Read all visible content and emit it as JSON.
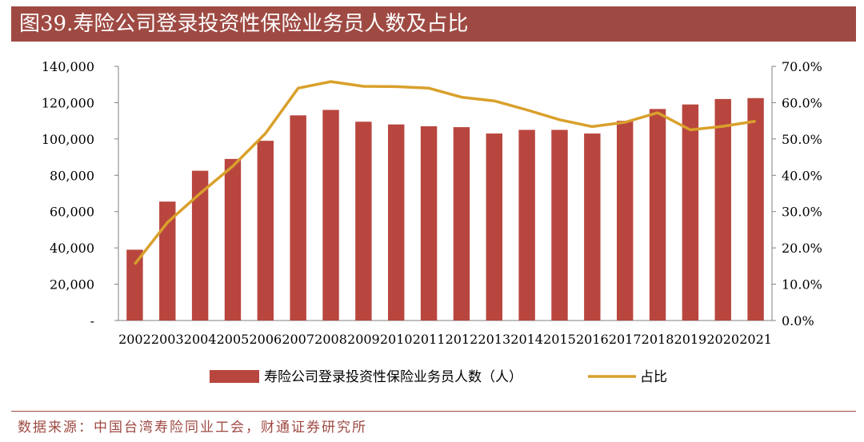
{
  "title": "图39.寿险公司登录投资性保险业务员人数及占比",
  "source": "数据来源：中国台湾寿险同业工会，财通证券研究所",
  "colors": {
    "bar": "#b8463f",
    "line": "#d9a02b",
    "title_bg": "#9e4a43"
  },
  "chart_data": {
    "type": "bar+line",
    "categories": [
      "2002",
      "2003",
      "2004",
      "2005",
      "2006",
      "2007",
      "2008",
      "2009",
      "2010",
      "2011",
      "2012",
      "2013",
      "2014",
      "2015",
      "2016",
      "2017",
      "2018",
      "2019",
      "2020",
      "2021"
    ],
    "series": [
      {
        "name": "寿险公司登录投资性保险业务员人数（人）",
        "type": "bar",
        "axis": "left",
        "values": [
          39000,
          65500,
          82500,
          89000,
          99000,
          113000,
          116000,
          109500,
          108000,
          107000,
          106500,
          103000,
          105000,
          105000,
          103000,
          110000,
          116500,
          119000,
          122000,
          122500
        ]
      },
      {
        "name": "占比",
        "type": "line",
        "axis": "right",
        "values": [
          15.5,
          27.0,
          35.0,
          42.5,
          51.5,
          64.0,
          65.8,
          64.5,
          64.4,
          64.0,
          61.5,
          60.5,
          58.0,
          55.3,
          53.4,
          54.6,
          57.2,
          52.5,
          53.5,
          54.9
        ]
      }
    ],
    "y_left": {
      "min": 0,
      "max": 140000,
      "ticks": [
        "-",
        "20,000",
        "40,000",
        "60,000",
        "80,000",
        "100,000",
        "120,000",
        "140,000"
      ]
    },
    "y_right": {
      "min": 0,
      "max": 70,
      "ticks": [
        "0.0%",
        "10.0%",
        "20.0%",
        "30.0%",
        "40.0%",
        "50.0%",
        "60.0%",
        "70.0%"
      ]
    },
    "grid": false,
    "legend_position": "bottom"
  }
}
